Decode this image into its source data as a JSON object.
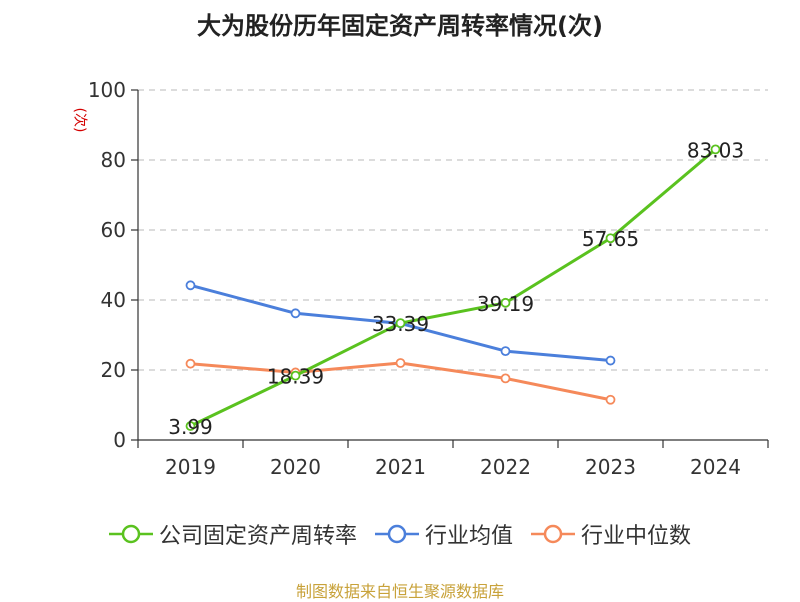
{
  "chart_data": {
    "type": "line",
    "title": "大为股份历年固定资产周转率情况(次)",
    "ylabel": "(次)",
    "xlabel": "",
    "categories": [
      "2019",
      "2020",
      "2021",
      "2022",
      "2023",
      "2024"
    ],
    "ylim": [
      0,
      100
    ],
    "yticks": [
      0,
      20,
      40,
      60,
      80,
      100
    ],
    "grid": true,
    "legend_position": "bottom",
    "series": [
      {
        "name": "公司固定资产周转率",
        "color": "#5ac21f",
        "values": [
          3.99,
          18.39,
          33.39,
          39.19,
          57.65,
          83.03
        ],
        "labels": [
          "3.99",
          "18.39",
          "33.39",
          "39.19",
          "57.65",
          "83.03"
        ],
        "show_labels": true
      },
      {
        "name": "行业均值",
        "color": "#4b7fdb",
        "values": [
          44.2,
          36.2,
          33.3,
          25.4,
          22.7,
          null
        ],
        "show_labels": false
      },
      {
        "name": "行业中位数",
        "color": "#f5895a",
        "values": [
          21.8,
          19.3,
          22.0,
          17.6,
          11.5,
          null
        ],
        "show_labels": false
      }
    ]
  },
  "source": "制图数据来自恒生聚源数据库"
}
